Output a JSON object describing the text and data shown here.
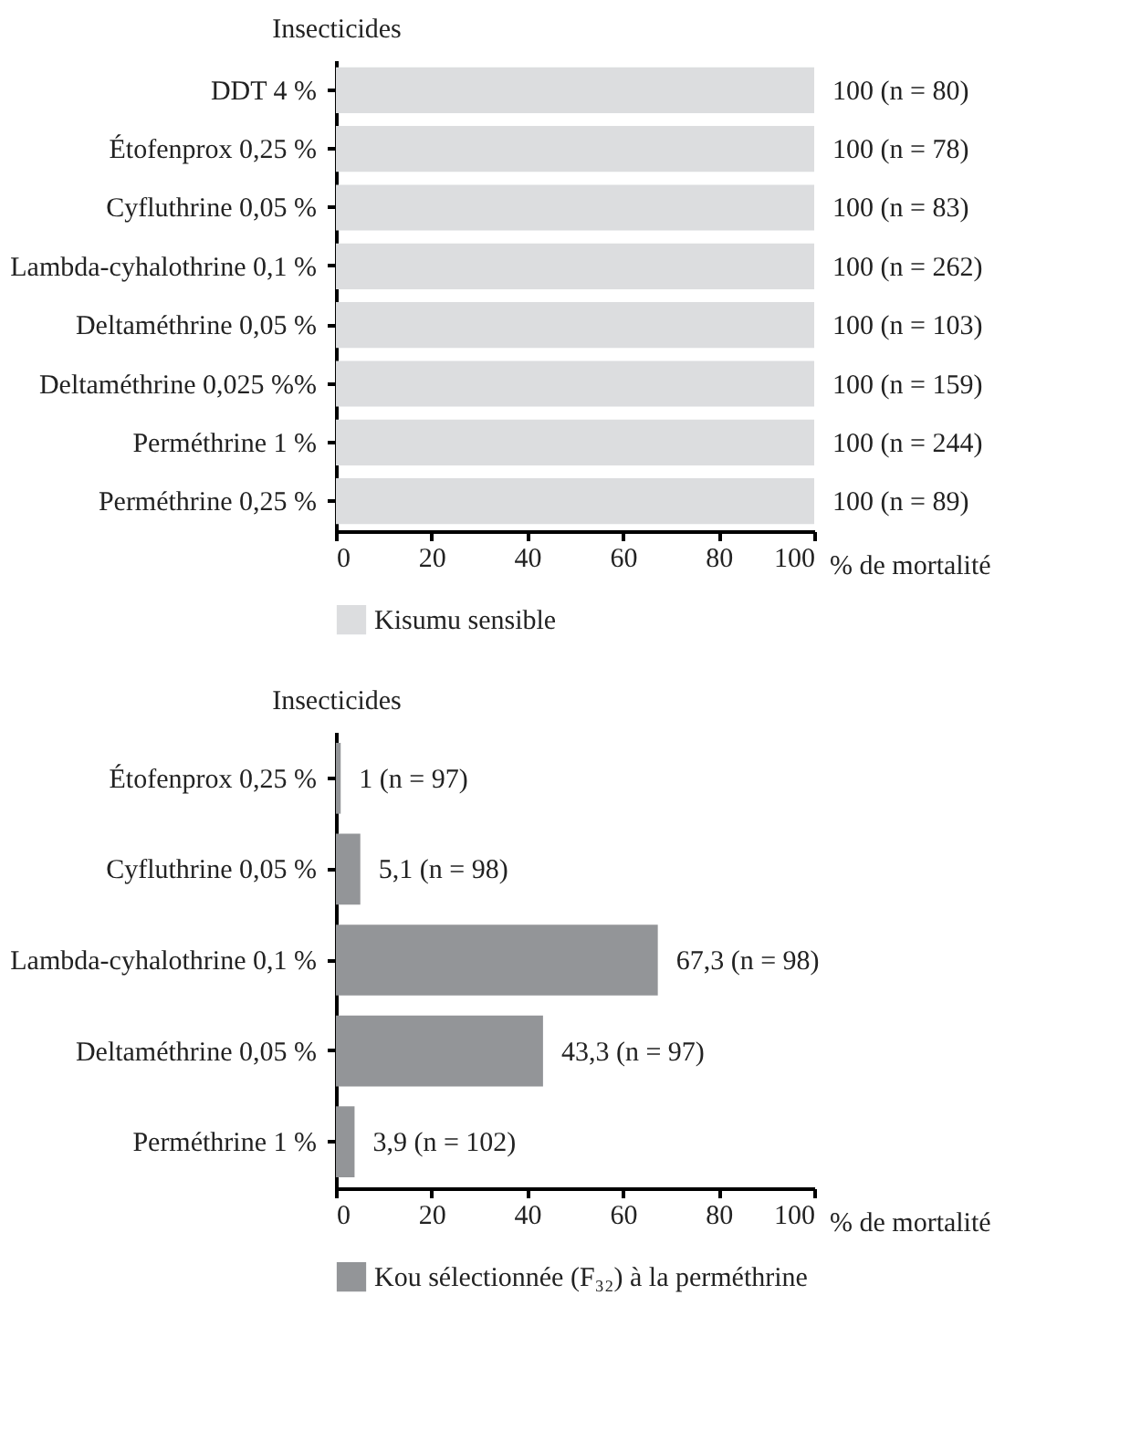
{
  "chart_data": [
    {
      "type": "bar",
      "orientation": "horizontal",
      "ylabel": "Insecticides",
      "xlabel": "% de mortalité",
      "categories": [
        "DDT 4 %",
        "Étofenprox 0,25 %",
        "Cyfluthrine 0,05 %",
        "Lambda-cyhalothrine 0,1 %",
        "Deltaméthrine 0,05 %",
        "Deltaméthrine 0,025 %%",
        "Perméthrine 1 %",
        "Perméthrine 0,25 %"
      ],
      "series": [
        {
          "name": "Kisumu sensible",
          "color": "#dcdddf",
          "values": [
            100,
            100,
            100,
            100,
            100,
            100,
            100,
            100
          ],
          "value_labels": [
            "100 (n = 80)",
            "100 (n = 78)",
            "100 (n = 83)",
            "100 (n = 262)",
            "100 (n = 103)",
            "100 (n = 159)",
            "100 (n = 244)",
            "100 (n = 89)"
          ]
        }
      ],
      "xlim": [
        0,
        100
      ],
      "xticks": [
        0,
        20,
        40,
        60,
        80,
        100
      ],
      "legend": "bottom",
      "grid": false
    },
    {
      "type": "bar",
      "orientation": "horizontal",
      "ylabel": "Insecticides",
      "xlabel": "% de mortalité",
      "categories": [
        "Étofenprox 0,25 %",
        "Cyfluthrine 0,05 %",
        "Lambda-cyhalothrine 0,1 %",
        "Deltaméthrine 0,05 %",
        "Perméthrine 1 %"
      ],
      "series": [
        {
          "name": "Kou sélectionnée (F₃₂) à la perméthrine",
          "color": "#939598",
          "values": [
            1,
            5.1,
            67.3,
            43.3,
            3.9
          ],
          "value_labels": [
            "1 (n = 97)",
            "5,1 (n = 98)",
            "67,3 (n = 98)",
            "43,3 (n = 97)",
            "3,9 (n = 102)"
          ]
        }
      ],
      "xlim": [
        0,
        100
      ],
      "xticks": [
        0,
        20,
        40,
        60,
        80,
        100
      ],
      "legend": "bottom",
      "grid": false
    }
  ]
}
